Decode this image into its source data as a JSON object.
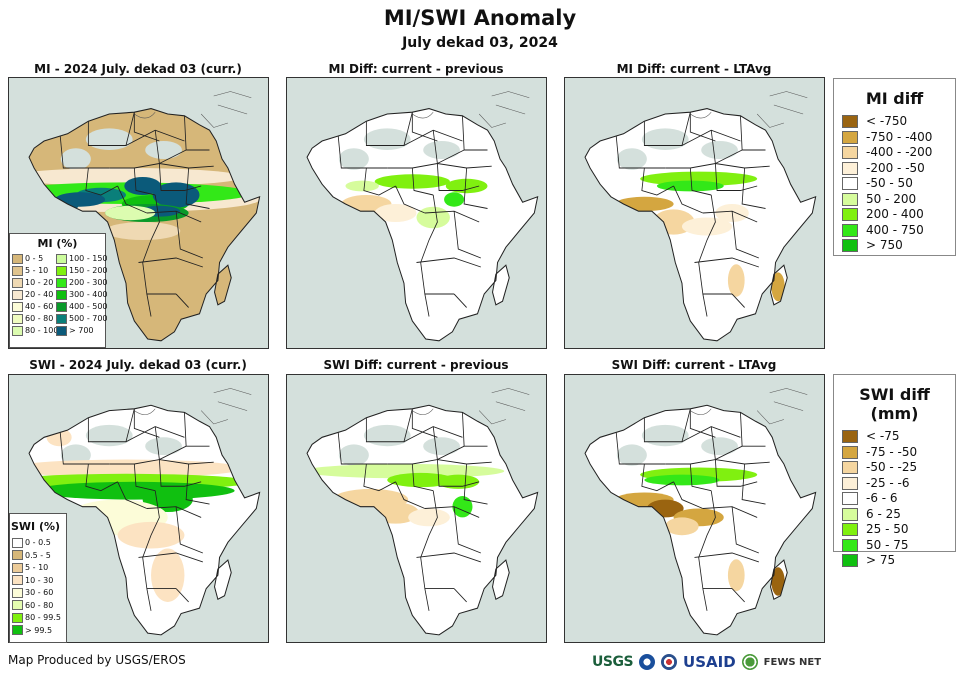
{
  "header": {
    "title": "MI/SWI Anomaly",
    "subtitle": "July dekad 03, 2024"
  },
  "panels": [
    {
      "id": "mi-current",
      "title": "MI - 2024 July. dekad 03 (curr.)",
      "variable": "MI",
      "type": "current"
    },
    {
      "id": "mi-diff-previous",
      "title": "MI Diff: current - previous",
      "variable": "MI",
      "type": "diff-previous"
    },
    {
      "id": "mi-diff-ltavg",
      "title": "MI Diff: current - LTAvg",
      "variable": "MI",
      "type": "diff-ltavg"
    },
    {
      "id": "swi-current",
      "title": "SWI - 2024 July. dekad 03 (curr.)",
      "variable": "SWI",
      "type": "current"
    },
    {
      "id": "swi-diff-previous",
      "title": "SWI Diff: current - previous",
      "variable": "SWI",
      "type": "diff-previous"
    },
    {
      "id": "swi-diff-ltavg",
      "title": "SWI Diff: current - LTAvg",
      "variable": "SWI",
      "type": "diff-ltavg"
    }
  ],
  "legends": {
    "mi_current": {
      "title": "MI (%)",
      "items": [
        {
          "label": "0 - 5",
          "color": "#d6b779"
        },
        {
          "label": "5 - 10",
          "color": "#e0c48e"
        },
        {
          "label": "10 - 20",
          "color": "#efd9b3"
        },
        {
          "label": "20 - 40",
          "color": "#f7e8d0"
        },
        {
          "label": "40 - 60",
          "color": "#fcfcd8"
        },
        {
          "label": "60 - 80",
          "color": "#f0fcc0"
        },
        {
          "label": "80 - 100",
          "color": "#dcfcb0"
        },
        {
          "label": "100 - 150",
          "color": "#ccfc9c"
        },
        {
          "label": "150 - 200",
          "color": "#80f010"
        },
        {
          "label": "200 - 300",
          "color": "#33e818"
        },
        {
          "label": "300 - 400",
          "color": "#10c010"
        },
        {
          "label": "400 - 500",
          "color": "#0a9a2a"
        },
        {
          "label": "500 - 700",
          "color": "#0a7f7a"
        },
        {
          "label": "> 700",
          "color": "#0b5a7a"
        }
      ]
    },
    "swi_current": {
      "title": "SWI (%)",
      "items": [
        {
          "label": "0 - 0.5",
          "color": "#ffffff"
        },
        {
          "label": "0.5 - 5",
          "color": "#d6b779"
        },
        {
          "label": "5 - 10",
          "color": "#eccb98"
        },
        {
          "label": "10 - 30",
          "color": "#fce3c2"
        },
        {
          "label": "30 - 60",
          "color": "#fcfcd8"
        },
        {
          "label": "60 - 80",
          "color": "#e4fcb0"
        },
        {
          "label": "80 - 99.5",
          "color": "#80f010"
        },
        {
          "label": "> 99.5",
          "color": "#10c010"
        }
      ]
    },
    "mi_diff": {
      "title": "MI diff",
      "items": [
        {
          "label": "< -750",
          "color": "#9a6410"
        },
        {
          "label": "-750 - -400",
          "color": "#d4a640"
        },
        {
          "label": "-400 - -200",
          "color": "#f5d6a0"
        },
        {
          "label": "-200 - -50",
          "color": "#fdf0d8"
        },
        {
          "label": "-50 - 50",
          "color": "#ffffff"
        },
        {
          "label": "50 - 200",
          "color": "#d6fc9c"
        },
        {
          "label": "200 - 400",
          "color": "#80f010"
        },
        {
          "label": "400 - 750",
          "color": "#33e818"
        },
        {
          "label": "> 750",
          "color": "#10c010"
        }
      ]
    },
    "swi_diff": {
      "title": "SWI diff (mm)",
      "items": [
        {
          "label": "< -75",
          "color": "#9a6410"
        },
        {
          "label": "-75 - -50",
          "color": "#d4a640"
        },
        {
          "label": "-50 - -25",
          "color": "#f5d6a0"
        },
        {
          "label": "-25 - -6",
          "color": "#fdf0d8"
        },
        {
          "label": "-6 - 6",
          "color": "#ffffff"
        },
        {
          "label": "6 - 25",
          "color": "#d6fc9c"
        },
        {
          "label": "25 - 50",
          "color": "#80f010"
        },
        {
          "label": "50 - 75",
          "color": "#33e818"
        },
        {
          "label": "> 75",
          "color": "#10c010"
        }
      ]
    }
  },
  "colors": {
    "ocean": "#d4e0dc",
    "nodata": "#d4e0dc",
    "border": "#222222"
  },
  "footer": {
    "credit": "Map Produced by USGS/EROS",
    "logos": [
      "USGS",
      "NOAA",
      "DOS",
      "USAID",
      "FEWS NET"
    ]
  }
}
